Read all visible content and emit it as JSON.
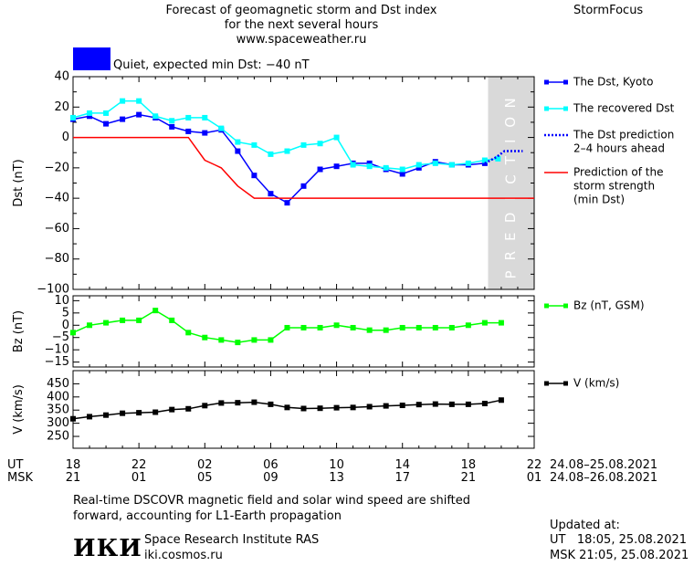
{
  "header": {
    "title_lines": [
      "Forecast of geomagnetic storm and Dst index",
      "for the next several hours",
      "www.spaceweather.ru"
    ],
    "brand": "StormFocus",
    "status_text": "Quiet, expected min Dst: −40 nT",
    "status_color": "#0000ff"
  },
  "chart_data": [
    {
      "type": "line",
      "ylabel": "Dst (nT)",
      "ylim": [
        -100,
        40
      ],
      "yticks": [
        "40",
        "20",
        "0",
        "−20",
        "−40",
        "−60",
        "−80",
        "−100"
      ],
      "ytick_values": [
        40,
        20,
        0,
        -20,
        -40,
        -60,
        -80,
        -100
      ],
      "xlim_hours": [
        18,
        46
      ],
      "prediction_zone": {
        "label": "PREDICTION",
        "from_hour": 43.2,
        "to_hour": 46,
        "color": "#d9d9d9"
      },
      "series": [
        {
          "name": "The Dst, Kyoto",
          "color": "#0000ff",
          "marker": "square",
          "style": "solid",
          "x": [
            18,
            19,
            20,
            21,
            22,
            23,
            24,
            25,
            26,
            27,
            28,
            29,
            30,
            31,
            32,
            33,
            34,
            35,
            36,
            37,
            38,
            39,
            40,
            41,
            42,
            43
          ],
          "y": [
            12,
            14,
            9,
            12,
            15,
            13,
            7,
            4,
            3,
            5,
            -9,
            -25,
            -37,
            -43,
            -32,
            -21,
            -19,
            -17,
            -17,
            -21,
            -24,
            -20,
            -16,
            -18,
            -18,
            -17
          ]
        },
        {
          "name": "The recovered Dst",
          "color": "#00ffff",
          "marker": "square",
          "style": "solid",
          "x": [
            18,
            19,
            20,
            21,
            22,
            23,
            24,
            25,
            26,
            27,
            28,
            29,
            30,
            31,
            32,
            33,
            34,
            35,
            36,
            37,
            38,
            39,
            40,
            41,
            42,
            43,
            43.8
          ],
          "y": [
            13,
            16,
            16,
            24,
            24,
            14,
            11,
            13,
            13,
            6,
            -3,
            -5,
            -11,
            -9,
            -5,
            -4,
            0,
            -18,
            -19,
            -20,
            -21,
            -18,
            -17,
            -18,
            -17,
            -15,
            -14
          ]
        },
        {
          "name": "The Dst prediction 2–4 hours ahead",
          "color": "#0000ff",
          "marker": "none",
          "style": "dotted",
          "x": [
            43,
            43.7,
            44.2,
            45.3
          ],
          "y": [
            -17,
            -13,
            -9,
            -9
          ]
        },
        {
          "name": "Prediction of the storm strength (min Dst)",
          "color": "#ff0000",
          "marker": "none",
          "style": "solid",
          "x": [
            18,
            25,
            26,
            26.6,
            27,
            28,
            29,
            46
          ],
          "y": [
            0,
            0,
            -15,
            -18,
            -20,
            -32,
            -40,
            -40
          ]
        }
      ],
      "legend": {
        "placement": "right",
        "entries": [
          {
            "lines": [
              "The Dst, Kyoto"
            ],
            "color": "#0000ff",
            "style": "solid-marker"
          },
          {
            "lines": [
              "The recovered Dst"
            ],
            "color": "#00ffff",
            "style": "solid-marker"
          },
          {
            "lines": [
              "The Dst prediction",
              "2–4 hours ahead"
            ],
            "color": "#0000ff",
            "style": "dotted"
          },
          {
            "lines": [
              "Prediction of the",
              "storm strength",
              "(min Dst)"
            ],
            "color": "#ff0000",
            "style": "solid"
          }
        ]
      }
    },
    {
      "type": "line",
      "ylabel": "Bz (nT)",
      "ylim": [
        -17,
        12
      ],
      "yticks": [
        "10",
        "5",
        "0",
        "−5",
        "−10",
        "−15"
      ],
      "ytick_values": [
        10,
        5,
        0,
        -5,
        -10,
        -15
      ],
      "series": [
        {
          "name": "Bz (nT, GSM)",
          "color": "#00ff00",
          "marker": "square",
          "style": "solid",
          "x": [
            18,
            19,
            20,
            21,
            22,
            23,
            24,
            25,
            26,
            27,
            28,
            29,
            30,
            31,
            32,
            33,
            34,
            35,
            36,
            37,
            38,
            39,
            40,
            41,
            42,
            43,
            44
          ],
          "y": [
            -3,
            0,
            1,
            2,
            2,
            6,
            2,
            -3,
            -5,
            -6,
            -7,
            -6,
            -6,
            -1,
            -1,
            -1,
            0,
            -1,
            -2,
            -2,
            -1,
            -1,
            -1,
            -1,
            0,
            1,
            1
          ]
        }
      ],
      "legend": {
        "placement": "right",
        "entries": [
          {
            "lines": [
              "Bz (nT, GSM)"
            ],
            "color": "#00ff00",
            "style": "solid-marker"
          }
        ]
      }
    },
    {
      "type": "line",
      "ylabel": "V (km/s)",
      "ylim": [
        205,
        500
      ],
      "yticks": [
        "450",
        "400",
        "350",
        "300",
        "250"
      ],
      "ytick_values": [
        450,
        400,
        350,
        300,
        250
      ],
      "series": [
        {
          "name": "V (km/s)",
          "color": "#000000",
          "marker": "square",
          "style": "solid",
          "x": [
            18,
            19,
            20,
            21,
            22,
            23,
            24,
            25,
            26,
            27,
            28,
            29,
            30,
            31,
            32,
            33,
            34,
            35,
            36,
            37,
            38,
            39,
            40,
            41,
            42,
            43,
            44
          ],
          "y": [
            317,
            325,
            331,
            338,
            340,
            342,
            352,
            355,
            367,
            377,
            378,
            380,
            372,
            360,
            356,
            357,
            359,
            360,
            363,
            366,
            368,
            371,
            373,
            372,
            372,
            375,
            388
          ]
        }
      ],
      "legend": {
        "placement": "right",
        "entries": [
          {
            "lines": [
              "V (km/s)"
            ],
            "color": "#000000",
            "style": "solid-marker"
          }
        ]
      }
    }
  ],
  "time_axis": {
    "ut_label": "UT",
    "msk_label": "MSK",
    "tick_hours": [
      18,
      22,
      26,
      30,
      34,
      38,
      42,
      46
    ],
    "ut_ticks": [
      "18",
      "22",
      "02",
      "06",
      "10",
      "14",
      "18",
      "22"
    ],
    "msk_ticks": [
      "21",
      "01",
      "05",
      "09",
      "13",
      "17",
      "21",
      "01"
    ],
    "ut_range": "24.08–25.08.2021",
    "msk_range": "24.08–26.08.2021"
  },
  "footer": {
    "note_lines": [
      "Real-time DSCOVR magnetic field and solar wind speed are shifted",
      "forward, accounting for L1-Earth propagation"
    ],
    "logo_text": "ИКИ",
    "institute": "Space Research Institute RAS",
    "website": "iki.cosmos.ru",
    "updated_label": "Updated at:",
    "updated_ut": "UT   18:05, 25.08.2021",
    "updated_msk": "MSK 21:05, 25.08.2021"
  }
}
